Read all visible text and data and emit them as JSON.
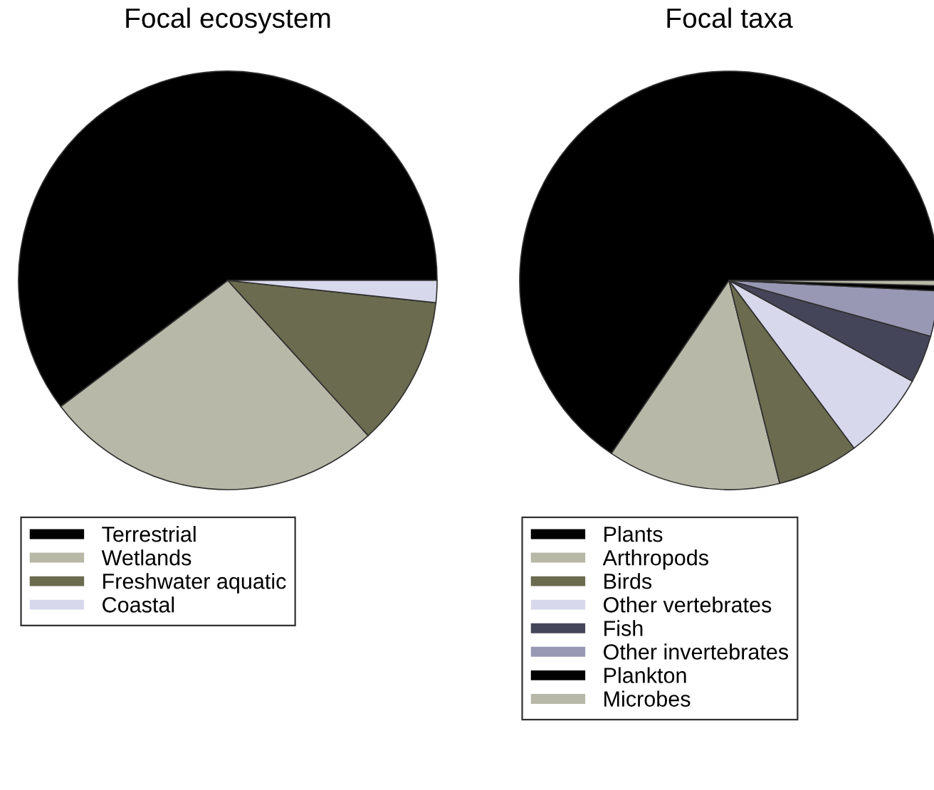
{
  "chart_data": [
    {
      "type": "pie",
      "title": "Focal ecosystem",
      "categories": [
        "Terrestrial",
        "Wetlands",
        "Freshwater aquatic",
        "Coastal"
      ],
      "values": [
        60.3,
        26.4,
        11.6,
        1.7
      ],
      "colors": [
        "#000000",
        "#b8b8a8",
        "#6b6b4f",
        "#d8d8ec"
      ],
      "legend": "bottom"
    },
    {
      "type": "pie",
      "title": "Focal taxa",
      "categories": [
        "Plants",
        "Arthropods",
        "Birds",
        "Other vertebrates",
        "Fish",
        "Other invertebrates",
        "Plankton",
        "Microbes"
      ],
      "values": [
        65.5,
        13.4,
        6.3,
        6.8,
        3.7,
        3.5,
        0.4,
        0.4
      ],
      "colors": [
        "#000000",
        "#b8b8a8",
        "#6b6b4f",
        "#d8d8ec",
        "#45455a",
        "#9898b4",
        "#000000",
        "#b8b8a8"
      ],
      "legend": "bottom"
    }
  ]
}
